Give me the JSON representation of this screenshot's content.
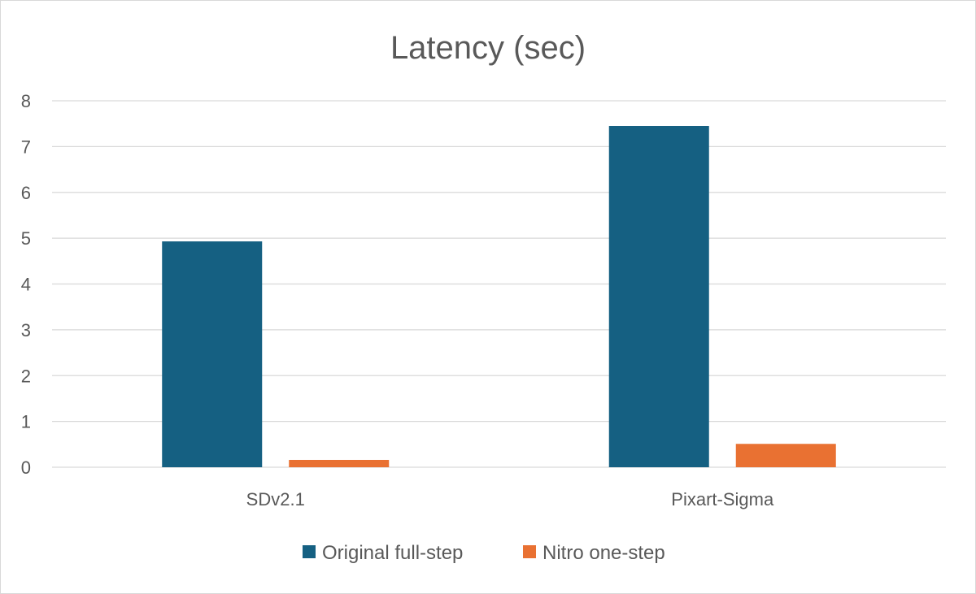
{
  "chart_data": {
    "type": "bar",
    "title": "Latency (sec)",
    "categories": [
      "SDv2.1",
      "Pixart-Sigma"
    ],
    "series": [
      {
        "name": "Original full-step",
        "values": [
          4.93,
          7.45
        ],
        "color": "#156082"
      },
      {
        "name": "Nitro one-step",
        "values": [
          0.16,
          0.51
        ],
        "color": "#e97132"
      }
    ],
    "ylim": [
      0,
      8
    ],
    "yticks": [
      0,
      1,
      2,
      3,
      4,
      5,
      6,
      7,
      8
    ],
    "grid": true,
    "legend_position": "bottom",
    "xlabel": "",
    "ylabel": ""
  }
}
